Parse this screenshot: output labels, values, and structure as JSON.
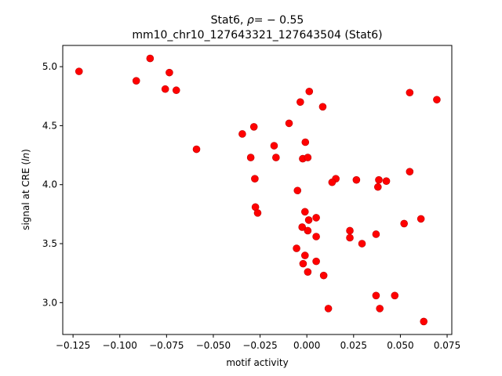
{
  "chart_data": {
    "type": "scatter",
    "title_line1_prefix": "Stat6, ",
    "title_rho_symbol": "ρ",
    "title_rho_value": "= − 0.55",
    "title_line2": "mm10_chr10_127643321_127643504 (Stat6)",
    "xlabel": "motif activity",
    "ylabel_prefix": "signal at CRE (",
    "ylabel_ln": "ln",
    "ylabel_suffix": ")",
    "xlim": [
      -0.1305,
      0.0775
    ],
    "ylim": [
      2.73,
      5.18
    ],
    "xticks": [
      -0.125,
      -0.1,
      -0.075,
      -0.05,
      -0.025,
      0.0,
      0.025,
      0.05,
      0.075
    ],
    "xtick_labels": [
      "−0.125",
      "−0.100",
      "−0.075",
      "−0.050",
      "−0.025",
      "0.000",
      "0.025",
      "0.050",
      "0.075"
    ],
    "yticks": [
      3.0,
      3.5,
      4.0,
      4.5,
      5.0
    ],
    "ytick_labels": [
      "3.0",
      "3.5",
      "4.0",
      "4.5",
      "5.0"
    ],
    "grid": false,
    "marker_color": "#ff0000",
    "marker_edge_color": "#c00000",
    "points": [
      {
        "x": -0.1218,
        "y": 4.96
      },
      {
        "x": -0.0838,
        "y": 5.07
      },
      {
        "x": -0.0912,
        "y": 4.88
      },
      {
        "x": -0.0735,
        "y": 4.95
      },
      {
        "x": -0.0757,
        "y": 4.81
      },
      {
        "x": -0.0698,
        "y": 4.8
      },
      {
        "x": -0.059,
        "y": 4.3
      },
      {
        "x": -0.0345,
        "y": 4.43
      },
      {
        "x": -0.0283,
        "y": 4.49
      },
      {
        "x": -0.03,
        "y": 4.23
      },
      {
        "x": -0.0175,
        "y": 4.33
      },
      {
        "x": -0.0165,
        "y": 4.23
      },
      {
        "x": -0.0095,
        "y": 4.52
      },
      {
        "x": -0.0278,
        "y": 4.05
      },
      {
        "x": -0.0275,
        "y": 3.81
      },
      {
        "x": -0.0263,
        "y": 3.76
      },
      {
        "x": -0.0035,
        "y": 4.7
      },
      {
        "x": 0.0013,
        "y": 4.79
      },
      {
        "x": 0.0085,
        "y": 4.66
      },
      {
        "x": -0.0008,
        "y": 4.36
      },
      {
        "x": -0.0022,
        "y": 4.22
      },
      {
        "x": 0.0005,
        "y": 4.23
      },
      {
        "x": -0.005,
        "y": 3.95
      },
      {
        "x": 0.0155,
        "y": 4.05
      },
      {
        "x": 0.0135,
        "y": 4.02
      },
      {
        "x": 0.0265,
        "y": 4.04
      },
      {
        "x": 0.0385,
        "y": 4.04
      },
      {
        "x": 0.0425,
        "y": 4.03
      },
      {
        "x": 0.038,
        "y": 3.98
      },
      {
        "x": 0.055,
        "y": 4.11
      },
      {
        "x": 0.055,
        "y": 4.78
      },
      {
        "x": 0.0695,
        "y": 4.72
      },
      {
        "x": -0.001,
        "y": 3.77
      },
      {
        "x": 0.001,
        "y": 3.7
      },
      {
        "x": 0.005,
        "y": 3.72
      },
      {
        "x": -0.0025,
        "y": 3.64
      },
      {
        "x": 0.0005,
        "y": 3.61
      },
      {
        "x": 0.005,
        "y": 3.56
      },
      {
        "x": 0.023,
        "y": 3.61
      },
      {
        "x": 0.023,
        "y": 3.55
      },
      {
        "x": 0.0295,
        "y": 3.5
      },
      {
        "x": 0.037,
        "y": 3.58
      },
      {
        "x": 0.052,
        "y": 3.67
      },
      {
        "x": 0.061,
        "y": 3.71
      },
      {
        "x": -0.0055,
        "y": 3.46
      },
      {
        "x": -0.001,
        "y": 3.4
      },
      {
        "x": -0.002,
        "y": 3.33
      },
      {
        "x": 0.005,
        "y": 3.35
      },
      {
        "x": 0.0005,
        "y": 3.26
      },
      {
        "x": 0.009,
        "y": 3.23
      },
      {
        "x": 0.037,
        "y": 3.06
      },
      {
        "x": 0.047,
        "y": 3.06
      },
      {
        "x": 0.039,
        "y": 2.95
      },
      {
        "x": 0.0115,
        "y": 2.95
      },
      {
        "x": 0.0625,
        "y": 2.84
      }
    ]
  }
}
